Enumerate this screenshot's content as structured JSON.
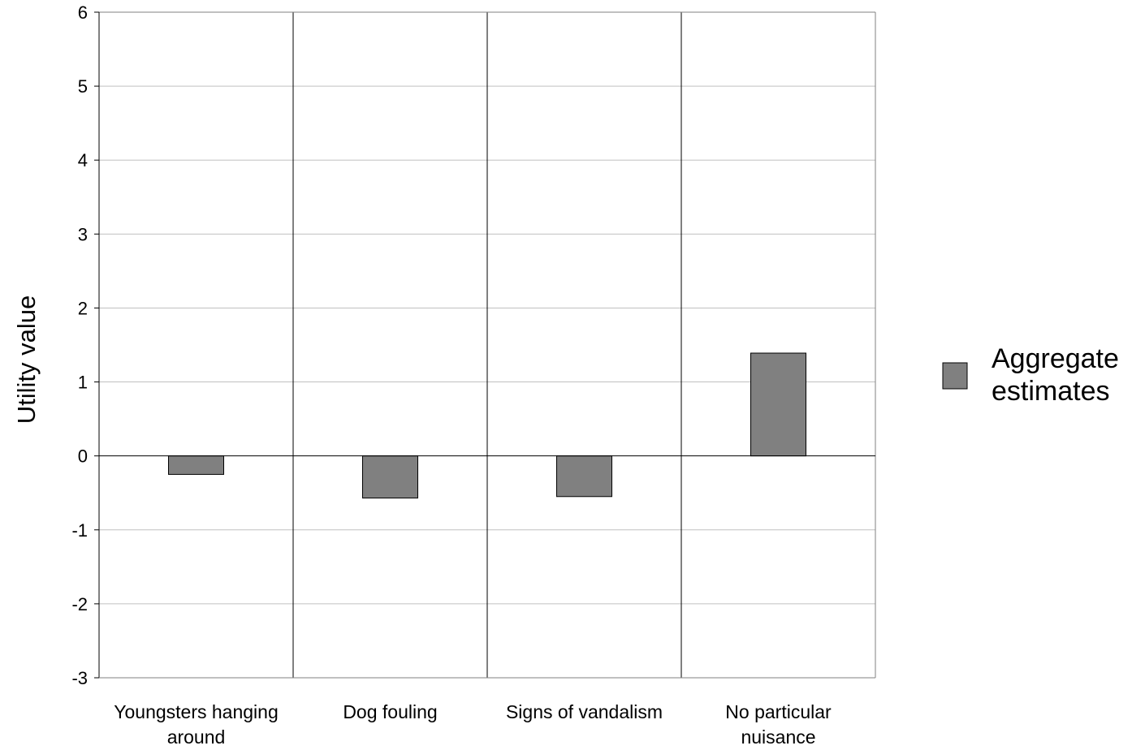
{
  "chart_data": {
    "type": "bar",
    "categories": [
      [
        "Youngsters hanging",
        "around"
      ],
      [
        "Dog fouling"
      ],
      [
        "Signs of vandalism"
      ],
      [
        "No particular",
        "nuisance"
      ]
    ],
    "series": [
      {
        "name": "Aggregate estimates",
        "legend_lines": [
          "Aggregate",
          "estimates"
        ],
        "values": [
          -0.25,
          -0.57,
          -0.55,
          1.39
        ],
        "color": "#808080"
      }
    ],
    "xlabel": "",
    "ylabel": "Utility value",
    "ylim": [
      -3,
      6
    ],
    "yticks": [
      6,
      5,
      4,
      3,
      2,
      1,
      0,
      -1,
      -2,
      -3
    ],
    "grid": true,
    "category_separators": true,
    "legend_position": "right"
  },
  "colors": {
    "bar_fill": "#808080",
    "bar_stroke": "#000000",
    "gridline": "#c0c0c0",
    "axis": "#000000",
    "separator": "#000000"
  }
}
